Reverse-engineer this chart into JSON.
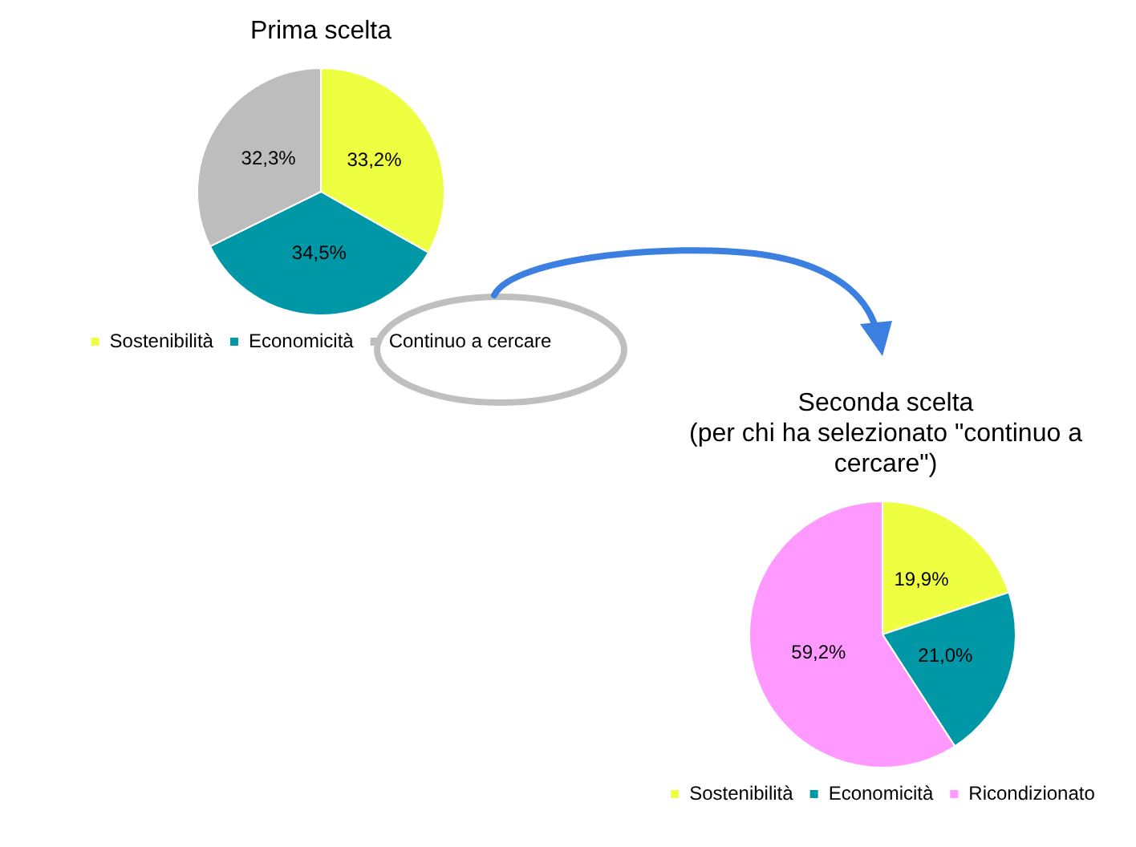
{
  "chart_data": [
    {
      "type": "pie",
      "title": "Prima scelta",
      "categories": [
        "Sostenibilità",
        "Economicità",
        "Continuo a cercare"
      ],
      "values": [
        33.2,
        34.5,
        32.3
      ],
      "value_labels": [
        "33,2%",
        "34,5%",
        "32,3%"
      ],
      "colors": [
        "#eeff41",
        "#0097a7",
        "#bdbdbd"
      ],
      "legend": "bottom"
    },
    {
      "type": "pie",
      "title": "Seconda scelta",
      "subtitle": "(per chi ha selezionato \"continuo a cercare\")",
      "categories": [
        "Sostenibilità",
        "Economicità",
        "Ricondizionato"
      ],
      "values": [
        19.9,
        21.0,
        59.2
      ],
      "value_labels": [
        "19,9%",
        "21,0%",
        "59,2%"
      ],
      "colors": [
        "#eeff41",
        "#0097a7",
        "#ff99ff"
      ],
      "legend": "bottom"
    }
  ]
}
